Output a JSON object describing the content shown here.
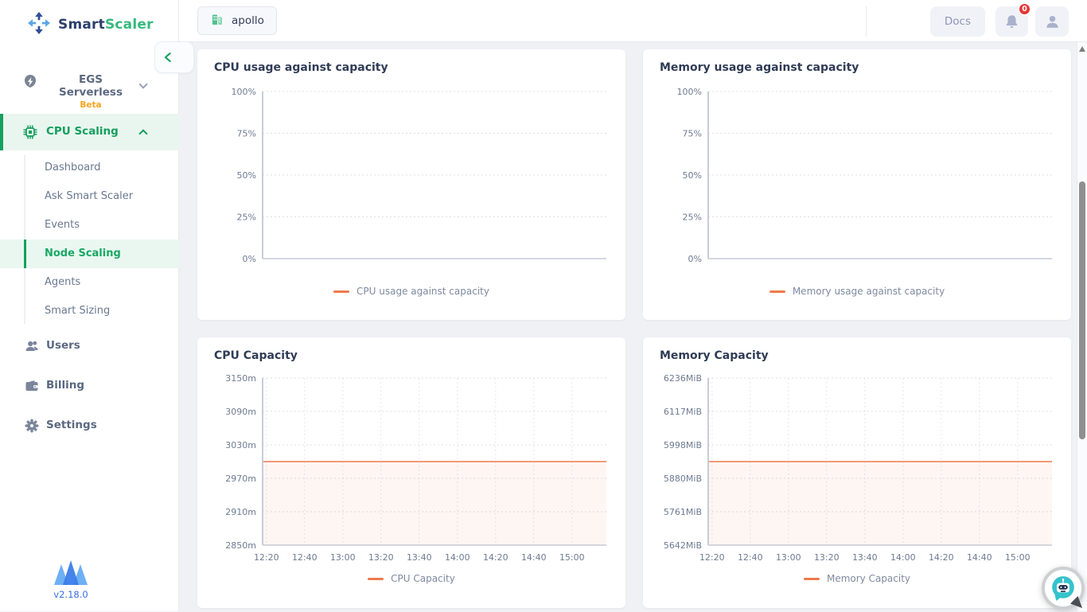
{
  "sidebar": {
    "logo": {
      "primary": "Smart",
      "secondary": "Scaler"
    },
    "egs": {
      "label": "EGS Serverless",
      "badge": "Beta"
    },
    "cpu_scaling": {
      "label": "CPU Scaling"
    },
    "cpu_items": [
      {
        "label": "Dashboard",
        "active": false
      },
      {
        "label": "Ask Smart Scaler",
        "active": false
      },
      {
        "label": "Events",
        "active": false
      },
      {
        "label": "Node Scaling",
        "active": true
      },
      {
        "label": "Agents",
        "active": false
      },
      {
        "label": "Smart Sizing",
        "active": false
      }
    ],
    "bottom_items": [
      {
        "label": "Users"
      },
      {
        "label": "Billing"
      },
      {
        "label": "Settings"
      }
    ],
    "version": "v2.18.0"
  },
  "topbar": {
    "org_label": "apollo",
    "docs_label": "Docs",
    "notification_badge": "0"
  },
  "colors": {
    "accent_green": "#14a05e",
    "line_orange": "#ee7a4e",
    "badge_red": "#e63535",
    "beta_orange": "#f5a41f",
    "version_blue": "#3a6ce0"
  },
  "cards": [
    {
      "title": "CPU usage against capacity",
      "legend": "CPU usage against capacity"
    },
    {
      "title": "Memory usage against capacity",
      "legend": "Memory usage against capacity"
    },
    {
      "title": "CPU Capacity",
      "legend": "CPU Capacity"
    },
    {
      "title": "Memory Capacity",
      "legend": "Memory Capacity"
    }
  ],
  "chart_data": [
    {
      "type": "line",
      "title": "CPU usage against capacity",
      "y_ticks": [
        "100%",
        "75%",
        "50%",
        "25%",
        "0%"
      ],
      "x_ticks": [],
      "ylim": [
        0,
        100
      ],
      "ylabel": "percent",
      "grid": "horizontal-dotted",
      "legend_position": "bottom",
      "series": [],
      "color": "#ee7a4e"
    },
    {
      "type": "line",
      "title": "Memory usage against capacity",
      "y_ticks": [
        "100%",
        "75%",
        "50%",
        "25%",
        "0%"
      ],
      "x_ticks": [],
      "ylim": [
        0,
        100
      ],
      "ylabel": "percent",
      "grid": "horizontal-dotted",
      "legend_position": "bottom",
      "series": [],
      "color": "#ee7a4e"
    },
    {
      "type": "line",
      "title": "CPU Capacity",
      "y_ticks": [
        "3150m",
        "3090m",
        "3030m",
        "2970m",
        "2910m",
        "2850m"
      ],
      "x_ticks": [
        "12:20",
        "12:40",
        "13:00",
        "13:20",
        "13:40",
        "14:00",
        "14:20",
        "14:40",
        "15:00"
      ],
      "ylim": [
        2850,
        3150
      ],
      "unit": "m",
      "grid": "both-dotted",
      "legend_position": "bottom",
      "series": [
        {
          "name": "CPU Capacity",
          "constant_value": 3000
        }
      ],
      "constant_value": 3000,
      "area_fill": true,
      "color": "#ee7a4e"
    },
    {
      "type": "line",
      "title": "Memory Capacity",
      "y_ticks": [
        "6236MiB",
        "6117MiB",
        "5998MiB",
        "5880MiB",
        "5761MiB",
        "5642MiB"
      ],
      "x_ticks": [
        "12:20",
        "12:40",
        "13:00",
        "13:20",
        "13:40",
        "14:00",
        "14:20",
        "14:40",
        "15:00"
      ],
      "ylim": [
        5642,
        6236
      ],
      "unit": "MiB",
      "grid": "both-dotted",
      "legend_position": "bottom",
      "series": [
        {
          "name": "Memory Capacity",
          "constant_value": 5939
        }
      ],
      "constant_value": 5939,
      "area_fill": true,
      "color": "#ee7a4e"
    }
  ]
}
